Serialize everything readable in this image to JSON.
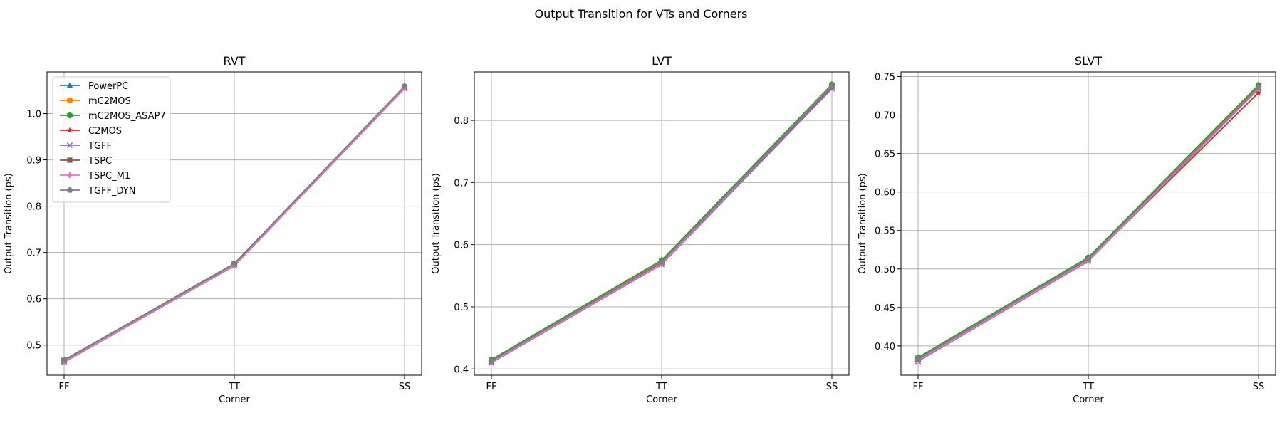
{
  "figure": {
    "suptitle": "Output Transition for VTs and Corners"
  },
  "chart_data": [
    {
      "type": "line",
      "title": "RVT",
      "xlabel": "Corner",
      "ylabel": "Output Transition (ps)",
      "categories": [
        "FF",
        "TT",
        "SS"
      ],
      "ylim": [
        0.435,
        1.09
      ],
      "yticks": [
        0.5,
        0.6,
        0.7,
        0.8,
        0.9,
        1.0
      ],
      "ytick_labels": [
        "0.5",
        "0.6",
        "0.7",
        "0.8",
        "0.9",
        "1.0"
      ],
      "grid": true,
      "legend": "upper-left",
      "series": [
        {
          "name": "PowerPC",
          "color": "#1f77b4",
          "marker": "triangle-up",
          "values": [
            0.466,
            0.674,
            1.057
          ]
        },
        {
          "name": "mC2MOS",
          "color": "#ff7f0e",
          "marker": "circle",
          "values": [
            0.467,
            0.675,
            1.058
          ]
        },
        {
          "name": "mC2MOS_ASAP7",
          "color": "#2ca02c",
          "marker": "hexagon",
          "values": [
            0.468,
            0.676,
            1.059
          ]
        },
        {
          "name": "C2MOS",
          "color": "#d62728",
          "marker": "star",
          "values": [
            0.466,
            0.674,
            1.056
          ]
        },
        {
          "name": "TGFF",
          "color": "#9467bd",
          "marker": "x",
          "values": [
            0.463,
            0.671,
            1.054
          ]
        },
        {
          "name": "TSPC",
          "color": "#8c564b",
          "marker": "square",
          "values": [
            0.467,
            0.675,
            1.058
          ]
        },
        {
          "name": "TSPC_M1",
          "color": "#e377c2",
          "marker": "diamond",
          "values": [
            0.464,
            0.672,
            1.055
          ]
        },
        {
          "name": "TGFF_DYN",
          "color": "#7f7f7f",
          "marker": "pentagon",
          "values": [
            0.467,
            0.675,
            1.059
          ]
        }
      ]
    },
    {
      "type": "line",
      "title": "LVT",
      "xlabel": "Corner",
      "ylabel": "Output Transition (ps)",
      "categories": [
        "FF",
        "TT",
        "SS"
      ],
      "ylim": [
        0.39,
        0.878
      ],
      "yticks": [
        0.4,
        0.5,
        0.6,
        0.7,
        0.8
      ],
      "ytick_labels": [
        "0.4",
        "0.5",
        "0.6",
        "0.7",
        "0.8"
      ],
      "grid": true,
      "series": [
        {
          "name": "PowerPC",
          "color": "#1f77b4",
          "marker": "triangle-up",
          "values": [
            0.413,
            0.572,
            0.855
          ]
        },
        {
          "name": "mC2MOS",
          "color": "#ff7f0e",
          "marker": "circle",
          "values": [
            0.414,
            0.573,
            0.856
          ]
        },
        {
          "name": "mC2MOS_ASAP7",
          "color": "#2ca02c",
          "marker": "hexagon",
          "values": [
            0.415,
            0.575,
            0.858
          ]
        },
        {
          "name": "C2MOS",
          "color": "#d62728",
          "marker": "star",
          "values": [
            0.413,
            0.571,
            0.854
          ]
        },
        {
          "name": "TGFF",
          "color": "#9467bd",
          "marker": "x",
          "values": [
            0.41,
            0.568,
            0.851
          ]
        },
        {
          "name": "TSPC",
          "color": "#8c564b",
          "marker": "square",
          "values": [
            0.412,
            0.571,
            0.854
          ]
        },
        {
          "name": "TSPC_M1",
          "color": "#e377c2",
          "marker": "diamond",
          "values": [
            0.411,
            0.569,
            0.856
          ]
        },
        {
          "name": "TGFF_DYN",
          "color": "#7f7f7f",
          "marker": "pentagon",
          "values": [
            0.413,
            0.572,
            0.855
          ]
        }
      ]
    },
    {
      "type": "line",
      "title": "SLVT",
      "xlabel": "Corner",
      "ylabel": "Output Transition (ps)",
      "categories": [
        "FF",
        "TT",
        "SS"
      ],
      "ylim": [
        0.362,
        0.756
      ],
      "yticks": [
        0.4,
        0.45,
        0.5,
        0.55,
        0.6,
        0.65,
        0.7,
        0.75
      ],
      "ytick_labels": [
        "0.40",
        "0.45",
        "0.50",
        "0.55",
        "0.60",
        "0.65",
        "0.70",
        "0.75"
      ],
      "grid": true,
      "series": [
        {
          "name": "PowerPC",
          "color": "#1f77b4",
          "marker": "triangle-up",
          "values": [
            0.383,
            0.513,
            0.736
          ]
        },
        {
          "name": "mC2MOS",
          "color": "#ff7f0e",
          "marker": "circle",
          "values": [
            0.384,
            0.514,
            0.738
          ]
        },
        {
          "name": "mC2MOS_ASAP7",
          "color": "#2ca02c",
          "marker": "hexagon",
          "values": [
            0.385,
            0.515,
            0.739
          ]
        },
        {
          "name": "C2MOS",
          "color": "#d62728",
          "marker": "star",
          "values": [
            0.382,
            0.511,
            0.729
          ]
        },
        {
          "name": "TGFF",
          "color": "#9467bd",
          "marker": "x",
          "values": [
            0.38,
            0.51,
            0.734
          ]
        },
        {
          "name": "TSPC",
          "color": "#8c564b",
          "marker": "square",
          "values": [
            0.382,
            0.512,
            0.735
          ]
        },
        {
          "name": "TSPC_M1",
          "color": "#e377c2",
          "marker": "diamond",
          "values": [
            0.381,
            0.511,
            0.735
          ]
        },
        {
          "name": "TGFF_DYN",
          "color": "#7f7f7f",
          "marker": "pentagon",
          "values": [
            0.383,
            0.513,
            0.736
          ]
        }
      ]
    }
  ]
}
